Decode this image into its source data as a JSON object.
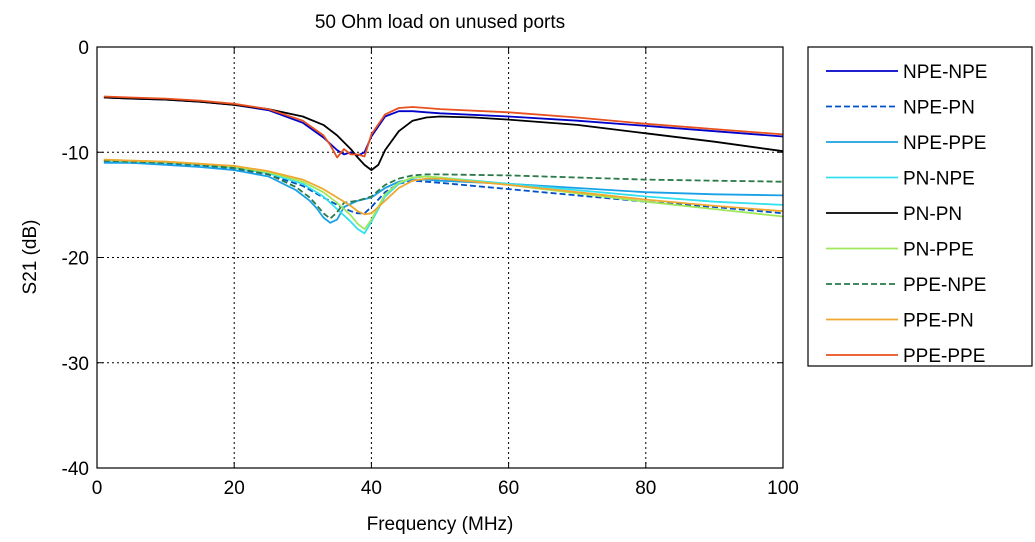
{
  "chart_data": {
    "type": "line",
    "title": "50 Ohm load on unused ports",
    "xlabel": "Frequency (MHz)",
    "ylabel": "S21 (dB)",
    "xlim": [
      0,
      100
    ],
    "ylim": [
      -40,
      0
    ],
    "xticks": [
      0,
      20,
      40,
      60,
      80,
      100
    ],
    "yticks": [
      0,
      -10,
      -20,
      -30,
      -40
    ],
    "grid": true,
    "legend_position": "outside-right",
    "series": [
      {
        "name": "NPE-NPE",
        "color": "#0000c8",
        "dash": "solid",
        "x": [
          1,
          5,
          10,
          15,
          20,
          25,
          30,
          33,
          35,
          36,
          37,
          38,
          39,
          40,
          42,
          44,
          46,
          48,
          50,
          60,
          70,
          80,
          90,
          100
        ],
        "y": [
          -4.8,
          -4.9,
          -5.0,
          -5.2,
          -5.5,
          -6.0,
          -7.2,
          -8.6,
          -9.8,
          -10.2,
          -10.0,
          -10.3,
          -10.0,
          -8.5,
          -6.6,
          -6.1,
          -6.1,
          -6.2,
          -6.3,
          -6.6,
          -7.0,
          -7.5,
          -8.0,
          -8.5
        ]
      },
      {
        "name": "NPE-PN",
        "color": "#0050c8",
        "dash": "dashed",
        "x": [
          1,
          5,
          10,
          15,
          20,
          25,
          30,
          33,
          35,
          37,
          38,
          39,
          40,
          42,
          44,
          46,
          48,
          50,
          60,
          70,
          80,
          90,
          100
        ],
        "y": [
          -10.9,
          -11.0,
          -11.1,
          -11.3,
          -11.6,
          -12.1,
          -13.2,
          -14.3,
          -15.0,
          -15.6,
          -15.8,
          -15.8,
          -15.2,
          -13.8,
          -13.0,
          -12.7,
          -12.8,
          -12.9,
          -13.5,
          -14.1,
          -14.7,
          -15.2,
          -15.8
        ]
      },
      {
        "name": "NPE-PPE",
        "color": "#1aa0e6",
        "dash": "solid",
        "x": [
          1,
          5,
          10,
          15,
          20,
          25,
          29,
          31,
          32,
          33,
          34,
          35,
          36,
          38,
          40,
          42,
          44,
          46,
          48,
          50,
          60,
          70,
          80,
          90,
          100
        ],
        "y": [
          -11.0,
          -11.0,
          -11.2,
          -11.4,
          -11.7,
          -12.3,
          -13.6,
          -14.6,
          -15.3,
          -16.2,
          -16.7,
          -16.4,
          -15.2,
          -14.6,
          -14.3,
          -13.4,
          -12.8,
          -12.6,
          -12.6,
          -12.7,
          -13.0,
          -13.4,
          -13.8,
          -14.0,
          -14.1
        ]
      },
      {
        "name": "PN-NPE",
        "color": "#33e0f0",
        "dash": "solid",
        "x": [
          1,
          5,
          10,
          15,
          20,
          25,
          30,
          33,
          35,
          37,
          38,
          39,
          40,
          42,
          44,
          46,
          48,
          50,
          60,
          70,
          80,
          90,
          100
        ],
        "y": [
          -10.8,
          -10.9,
          -11.0,
          -11.2,
          -11.5,
          -12.0,
          -13.0,
          -14.2,
          -15.4,
          -16.6,
          -17.3,
          -17.7,
          -16.6,
          -14.2,
          -13.0,
          -12.4,
          -12.3,
          -12.4,
          -13.0,
          -13.6,
          -14.2,
          -14.7,
          -15.0
        ]
      },
      {
        "name": "PN-PN",
        "color": "#000000",
        "dash": "solid",
        "x": [
          1,
          5,
          10,
          15,
          20,
          25,
          30,
          33,
          35,
          37,
          38,
          39,
          40,
          41,
          42,
          44,
          46,
          48,
          50,
          55,
          60,
          70,
          80,
          90,
          100
        ],
        "y": [
          -4.8,
          -4.9,
          -5.0,
          -5.2,
          -5.5,
          -5.9,
          -6.6,
          -7.4,
          -8.4,
          -9.7,
          -10.5,
          -11.2,
          -11.7,
          -11.2,
          -9.8,
          -8.0,
          -7.0,
          -6.7,
          -6.6,
          -6.7,
          -6.9,
          -7.4,
          -8.2,
          -9.0,
          -9.9
        ]
      },
      {
        "name": "PN-PPE",
        "color": "#a0e85a",
        "dash": "solid",
        "x": [
          1,
          5,
          10,
          15,
          20,
          25,
          30,
          33,
          35,
          37,
          38,
          39,
          40,
          42,
          44,
          46,
          48,
          50,
          60,
          70,
          80,
          90,
          100
        ],
        "y": [
          -10.7,
          -10.8,
          -10.9,
          -11.1,
          -11.4,
          -11.9,
          -12.8,
          -13.8,
          -14.8,
          -16.0,
          -16.8,
          -17.3,
          -16.4,
          -14.0,
          -12.9,
          -12.4,
          -12.3,
          -12.4,
          -13.1,
          -13.9,
          -14.7,
          -15.4,
          -16.1
        ]
      },
      {
        "name": "PPE-NPE",
        "color": "#2a7a4a",
        "dash": "dashed",
        "x": [
          1,
          5,
          10,
          15,
          20,
          25,
          29,
          31,
          32,
          33,
          34,
          35,
          36,
          38,
          40,
          42,
          44,
          46,
          48,
          50,
          60,
          70,
          80,
          90,
          100
        ],
        "y": [
          -10.8,
          -10.9,
          -11.0,
          -11.2,
          -11.5,
          -12.1,
          -13.3,
          -14.3,
          -15.0,
          -15.8,
          -16.3,
          -15.7,
          -14.8,
          -14.6,
          -14.2,
          -13.1,
          -12.5,
          -12.2,
          -12.1,
          -12.1,
          -12.2,
          -12.4,
          -12.6,
          -12.7,
          -12.8
        ]
      },
      {
        "name": "PPE-PN",
        "color": "#f0a830",
        "dash": "solid",
        "x": [
          1,
          5,
          10,
          15,
          20,
          25,
          30,
          33,
          35,
          37,
          38,
          39,
          40,
          42,
          44,
          46,
          48,
          50,
          60,
          70,
          80,
          90,
          100
        ],
        "y": [
          -10.7,
          -10.8,
          -10.9,
          -11.1,
          -11.3,
          -11.8,
          -12.6,
          -13.5,
          -14.3,
          -15.1,
          -15.6,
          -15.9,
          -15.8,
          -14.6,
          -13.4,
          -12.7,
          -12.5,
          -12.5,
          -13.1,
          -13.8,
          -14.5,
          -15.1,
          -15.6
        ]
      },
      {
        "name": "PPE-PPE",
        "color": "#e85020",
        "dash": "solid",
        "x": [
          1,
          5,
          10,
          15,
          20,
          25,
          30,
          33,
          34,
          35,
          36,
          37,
          38,
          39,
          40,
          42,
          44,
          46,
          48,
          50,
          60,
          70,
          80,
          90,
          100
        ],
        "y": [
          -4.7,
          -4.8,
          -4.9,
          -5.1,
          -5.4,
          -5.9,
          -7.0,
          -8.4,
          -9.3,
          -10.5,
          -9.7,
          -10.2,
          -10.2,
          -10.4,
          -8.3,
          -6.4,
          -5.8,
          -5.7,
          -5.8,
          -5.9,
          -6.2,
          -6.7,
          -7.3,
          -7.8,
          -8.3
        ]
      }
    ]
  }
}
